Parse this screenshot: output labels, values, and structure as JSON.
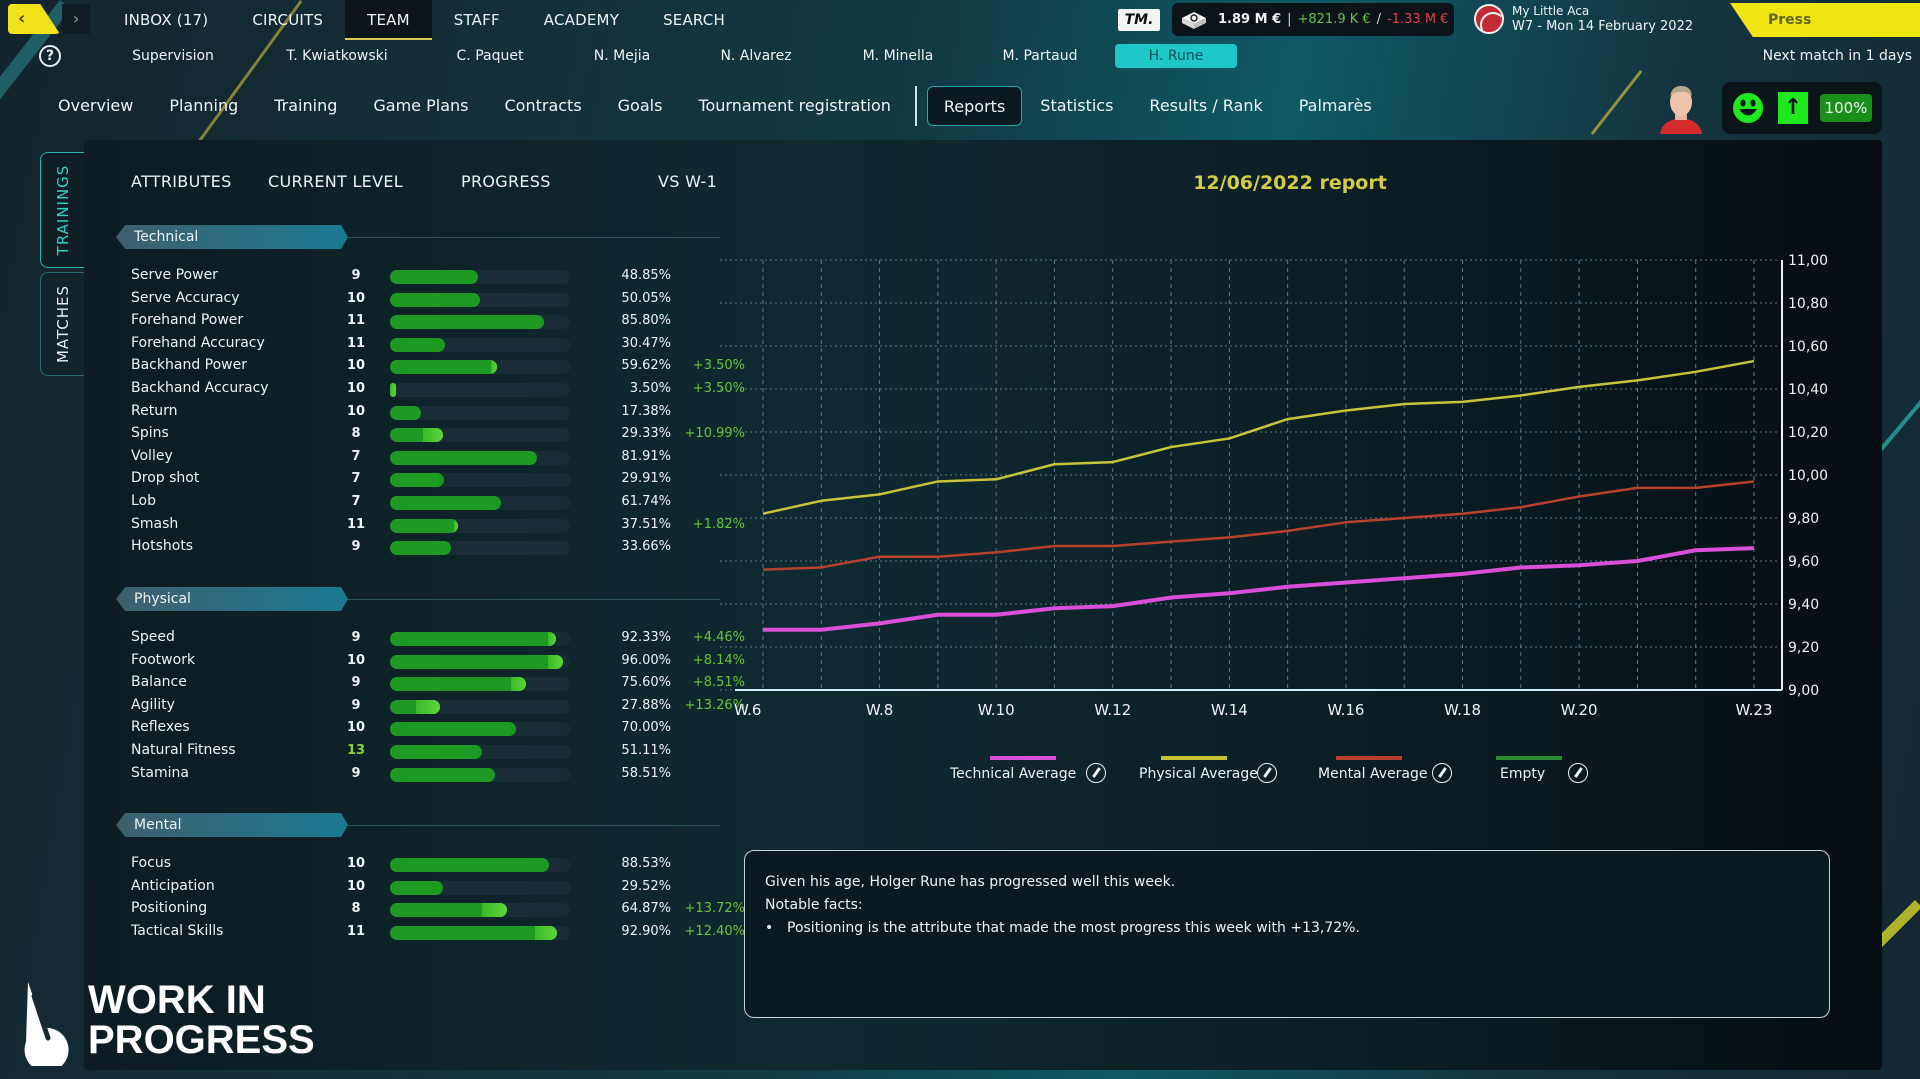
{
  "topbar": {
    "back_label": "‹",
    "forward_label": "›",
    "main_tabs": [
      {
        "label": "INBOX (17)",
        "active": false
      },
      {
        "label": "CIRCUITS",
        "active": false
      },
      {
        "label": "TEAM",
        "active": true
      },
      {
        "label": "STAFF",
        "active": false
      },
      {
        "label": "ACADEMY",
        "active": false
      },
      {
        "label": "SEARCH",
        "active": false
      }
    ],
    "tm_logo": "TM.",
    "finance": {
      "total": "1.89 M €",
      "separator": "|",
      "income": "+821.9 K €",
      "slash": "/",
      "expenses": "-1.33 M €"
    },
    "club": {
      "name": "My Little Aca",
      "date": "W7 - Mon 14 February 2022"
    },
    "press_conference": {
      "label": "Press Conference",
      "chevron": "»"
    }
  },
  "player_tabs": {
    "help": "?",
    "items": [
      {
        "label": "Supervision",
        "active": false
      },
      {
        "label": "T. Kwiatkowski",
        "active": false
      },
      {
        "label": "C. Paquet",
        "active": false
      },
      {
        "label": "N. Mejia",
        "active": false
      },
      {
        "label": "N. Alvarez",
        "active": false
      },
      {
        "label": "M. Minella",
        "active": false
      },
      {
        "label": "M. Partaud",
        "active": false
      },
      {
        "label": "H. Rune",
        "active": true
      }
    ],
    "next_match": "Next match in 1 days"
  },
  "section_tabs": [
    {
      "label": "Overview",
      "active": false
    },
    {
      "label": "Planning",
      "active": false
    },
    {
      "label": "Training",
      "active": false
    },
    {
      "label": "Game Plans",
      "active": false
    },
    {
      "label": "Contracts",
      "active": false
    },
    {
      "label": "Goals",
      "active": false
    },
    {
      "label": "Tournament registration",
      "active": false
    },
    {
      "label": "Reports",
      "active": true
    },
    {
      "label": "Statistics",
      "active": false
    },
    {
      "label": "Results / Rank",
      "active": false
    },
    {
      "label": "Palmarès",
      "active": false
    }
  ],
  "player_status": {
    "mood": "happy",
    "form": "up",
    "condition": "100%"
  },
  "side_tabs": [
    {
      "label": "TRAININGS",
      "active": true
    },
    {
      "label": "MATCHES",
      "active": false
    }
  ],
  "columns": {
    "attributes": "ATTRIBUTES",
    "current_level": "CURRENT LEVEL",
    "progress": "PROGRESS",
    "vs": "VS W-1"
  },
  "groups": [
    {
      "name": "Technical",
      "attributes": [
        {
          "name": "Serve Power",
          "level": "9",
          "progress": 48.85,
          "progress_label": "48.85%",
          "delta": "",
          "gain": 0
        },
        {
          "name": "Serve Accuracy",
          "level": "10",
          "progress": 50.05,
          "progress_label": "50.05%",
          "delta": "",
          "gain": 0
        },
        {
          "name": "Forehand Power",
          "level": "11",
          "progress": 85.8,
          "progress_label": "85.80%",
          "delta": "",
          "gain": 0
        },
        {
          "name": "Forehand Accuracy",
          "level": "11",
          "progress": 30.47,
          "progress_label": "30.47%",
          "delta": "",
          "gain": 0
        },
        {
          "name": "Backhand Power",
          "level": "10",
          "progress": 59.62,
          "progress_label": "59.62%",
          "delta": "+3.50%",
          "gain": 3.5
        },
        {
          "name": "Backhand Accuracy",
          "level": "10",
          "progress": 3.5,
          "progress_label": "3.50%",
          "delta": "+3.50%",
          "gain": 3.5
        },
        {
          "name": "Return",
          "level": "10",
          "progress": 17.38,
          "progress_label": "17.38%",
          "delta": "",
          "gain": 0
        },
        {
          "name": "Spins",
          "level": "8",
          "progress": 29.33,
          "progress_label": "29.33%",
          "delta": "+10.99%",
          "gain": 10.99
        },
        {
          "name": "Volley",
          "level": "7",
          "progress": 81.91,
          "progress_label": "81.91%",
          "delta": "",
          "gain": 0
        },
        {
          "name": "Drop shot",
          "level": "7",
          "progress": 29.91,
          "progress_label": "29.91%",
          "delta": "",
          "gain": 0
        },
        {
          "name": "Lob",
          "level": "7",
          "progress": 61.74,
          "progress_label": "61.74%",
          "delta": "",
          "gain": 0
        },
        {
          "name": "Smash",
          "level": "11",
          "progress": 37.51,
          "progress_label": "37.51%",
          "delta": "+1.82%",
          "gain": 1.82
        },
        {
          "name": "Hotshots",
          "level": "9",
          "progress": 33.66,
          "progress_label": "33.66%",
          "delta": "",
          "gain": 0
        }
      ]
    },
    {
      "name": "Physical",
      "attributes": [
        {
          "name": "Speed",
          "level": "9",
          "progress": 92.33,
          "progress_label": "92.33%",
          "delta": "+4.46%",
          "gain": 4.46
        },
        {
          "name": "Footwork",
          "level": "10",
          "progress": 96.0,
          "progress_label": "96.00%",
          "delta": "+8.14%",
          "gain": 8.14
        },
        {
          "name": "Balance",
          "level": "9",
          "progress": 75.6,
          "progress_label": "75.60%",
          "delta": "+8.51%",
          "gain": 8.51
        },
        {
          "name": "Agility",
          "level": "9",
          "progress": 27.88,
          "progress_label": "27.88%",
          "delta": "+13.26%",
          "gain": 13.26
        },
        {
          "name": "Reflexes",
          "level": "10",
          "progress": 70.0,
          "progress_label": "70.00%",
          "delta": "",
          "gain": 0
        },
        {
          "name": "Natural Fitness",
          "level": "13",
          "progress": 51.11,
          "progress_label": "51.11%",
          "delta": "",
          "gain": 0,
          "highlight": true
        },
        {
          "name": "Stamina",
          "level": "9",
          "progress": 58.51,
          "progress_label": "58.51%",
          "delta": "",
          "gain": 0
        }
      ]
    },
    {
      "name": "Mental",
      "attributes": [
        {
          "name": "Focus",
          "level": "10",
          "progress": 88.53,
          "progress_label": "88.53%",
          "delta": "",
          "gain": 0
        },
        {
          "name": "Anticipation",
          "level": "10",
          "progress": 29.52,
          "progress_label": "29.52%",
          "delta": "",
          "gain": 0
        },
        {
          "name": "Positioning",
          "level": "8",
          "progress": 64.87,
          "progress_label": "64.87%",
          "delta": "+13.72%",
          "gain": 13.72
        },
        {
          "name": "Tactical Skills",
          "level": "11",
          "progress": 92.9,
          "progress_label": "92.90%",
          "delta": "+12.40%",
          "gain": 12.4
        }
      ]
    }
  ],
  "report": {
    "title": "12/06/2022 report",
    "notes": {
      "summary": "Given his age, Holger Rune has progressed well this week.",
      "heading": "Notable facts:",
      "facts": [
        "Positioning is the attribute that made the most progress this week with +13,72%."
      ]
    }
  },
  "chart_data": {
    "type": "line",
    "title": "12/06/2022 report",
    "xlabel": "",
    "ylabel": "",
    "x": [
      "W.6",
      "W.7",
      "W.8",
      "W.9",
      "W.10",
      "W.11",
      "W.12",
      "W.13",
      "W.14",
      "W.15",
      "W.16",
      "W.17",
      "W.18",
      "W.19",
      "W.20",
      "W.21",
      "W.22",
      "W.23"
    ],
    "x_tick_labels": [
      "W.6",
      "W.8",
      "W.10",
      "W.12",
      "W.14",
      "W.16",
      "W.18",
      "W.20",
      "W.23"
    ],
    "y_tick_labels": [
      "9,00",
      "9,20",
      "9,40",
      "9,60",
      "9,80",
      "10,00",
      "10,20",
      "10,40",
      "10,60",
      "10,80",
      "11,00"
    ],
    "ylim": [
      9.0,
      11.0
    ],
    "grid": true,
    "y_axis_position": "right",
    "legend_position": "bottom",
    "series": [
      {
        "name": "Technical Average",
        "color": "#d94fd9",
        "values": [
          9.28,
          9.28,
          9.31,
          9.35,
          9.35,
          9.38,
          9.39,
          9.43,
          9.45,
          9.48,
          9.5,
          9.52,
          9.54,
          9.57,
          9.58,
          9.6,
          9.65,
          9.66
        ]
      },
      {
        "name": "Physical Average",
        "color": "#c8c43a",
        "values": [
          9.82,
          9.88,
          9.91,
          9.97,
          9.98,
          10.05,
          10.06,
          10.13,
          10.17,
          10.26,
          10.3,
          10.33,
          10.34,
          10.37,
          10.41,
          10.44,
          10.48,
          10.53
        ]
      },
      {
        "name": "Mental Average",
        "color": "#b8402e",
        "values": [
          9.56,
          9.57,
          9.62,
          9.62,
          9.64,
          9.67,
          9.67,
          9.69,
          9.71,
          9.74,
          9.78,
          9.8,
          9.82,
          9.85,
          9.9,
          9.94,
          9.94,
          9.97
        ]
      },
      {
        "name": "Empty",
        "color": "#2a8a32",
        "values": []
      }
    ]
  },
  "watermark": {
    "line1": "WORK IN",
    "line2": "PROGRESS"
  }
}
